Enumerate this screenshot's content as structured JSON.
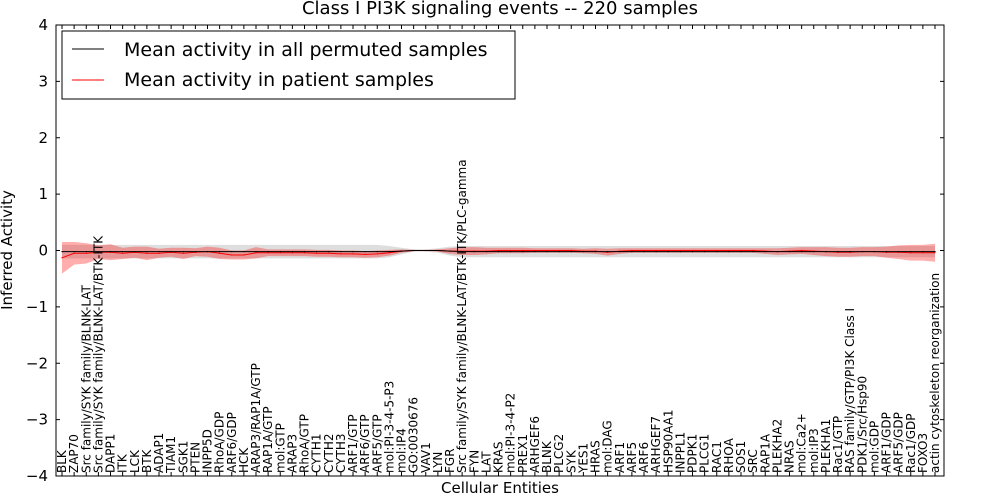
{
  "chart_data": {
    "type": "line",
    "title": "Class I PI3K signaling events -- 220 samples",
    "xlabel": "Cellular Entities",
    "ylabel": "Inferred Activity",
    "ylim": [
      -4,
      4
    ],
    "yticks": [
      "4",
      "3",
      "2",
      "1",
      "0",
      "−1",
      "−2",
      "−3",
      "−4"
    ],
    "legend": {
      "placement": "top-left",
      "entries": [
        {
          "name": "Mean activity in all permuted samples",
          "color": "#000000"
        },
        {
          "name": "Mean activity in patient samples",
          "color": "#ff0000"
        }
      ]
    },
    "categories": [
      "BLK",
      "ZAP70",
      "Src family/SYK family/BLNK-LAT",
      "Src family/SYK family/BLNK-LAT/BTK-ITK",
      "DAPP1",
      "ITK",
      "LCK",
      "BTK",
      "ADAP1",
      "TIAM1",
      "SGK1",
      "PTEN",
      "INPP5D",
      "RhoA/GDP",
      "ARF6/GDP",
      "HCK",
      "ARAP3/RAP1A/GTP",
      "RAP1A/GTP",
      "mol:GTP",
      "ARAP3",
      "RhoA/GTP",
      "CYTH1",
      "CYTH2",
      "CYTH3",
      "ARF1/GTP",
      "ARF6/GTP",
      "ARF5/GTP",
      "mol:PI-3-4-5-P3",
      "mol:IP4",
      "GO:0030676",
      "VAV1",
      "LYN",
      "FGR",
      "Src family/SYK family/BLNK-LAT/BTK-ITK/PLC-gamma",
      "FYN",
      "LAT",
      "KRAS",
      "mol:PI-3-4-P2",
      "PREX1",
      "ARHGEF6",
      "BLNK",
      "PLCG2",
      "SYK",
      "YES1",
      "HRAS",
      "mol:DAG",
      "ARF1",
      "ARF5",
      "ARF6",
      "ARHGEF7",
      "HSP90AA1",
      "INPPL1",
      "PDPK1",
      "PLCG1",
      "RAC1",
      "RHOA",
      "SOS1",
      "SRC",
      "RAP1A",
      "PLEKHA2",
      "NRAS",
      "mol:Ca2+",
      "mol:IP3",
      "PLEKHA1",
      "Rac1/GTP",
      "RAS family/GTP/PI3K Class I",
      "PDK1/Src/Hsp90",
      "mol:GDP",
      "ARF1/GDP",
      "ARF5/GDP",
      "Rac1/GDP",
      "FOXO3",
      "actin cytoskeleton reorganization"
    ],
    "series": [
      {
        "name": "Mean activity in all permuted samples",
        "values": [
          -0.02,
          -0.02,
          -0.02,
          -0.02,
          -0.02,
          -0.02,
          -0.02,
          -0.02,
          -0.02,
          -0.02,
          -0.02,
          -0.02,
          -0.02,
          -0.02,
          -0.02,
          -0.02,
          -0.02,
          -0.02,
          -0.02,
          -0.02,
          -0.02,
          -0.02,
          -0.02,
          -0.02,
          -0.02,
          -0.02,
          -0.02,
          -0.02,
          -0.01,
          0,
          0,
          0,
          -0.01,
          -0.02,
          -0.02,
          -0.02,
          -0.02,
          -0.02,
          -0.02,
          -0.02,
          -0.02,
          -0.02,
          -0.02,
          -0.02,
          -0.02,
          -0.02,
          -0.02,
          -0.02,
          -0.02,
          -0.02,
          -0.02,
          -0.02,
          -0.02,
          -0.02,
          -0.02,
          -0.02,
          -0.02,
          -0.02,
          -0.02,
          -0.02,
          -0.02,
          -0.02,
          -0.02,
          -0.02,
          -0.02,
          -0.02,
          -0.02,
          -0.02,
          -0.02,
          -0.02,
          -0.02,
          -0.02,
          -0.02
        ],
        "band": [
          0.12,
          0.12,
          0.12,
          0.12,
          0.12,
          0.12,
          0.12,
          0.12,
          0.12,
          0.12,
          0.12,
          0.12,
          0.12,
          0.12,
          0.12,
          0.12,
          0.12,
          0.12,
          0.12,
          0.12,
          0.12,
          0.12,
          0.12,
          0.12,
          0.12,
          0.12,
          0.12,
          0.1,
          0.06,
          0.02,
          0.02,
          0.04,
          0.08,
          0.1,
          0.1,
          0.1,
          0.1,
          0.1,
          0.1,
          0.1,
          0.1,
          0.1,
          0.1,
          0.1,
          0.1,
          0.1,
          0.1,
          0.1,
          0.1,
          0.1,
          0.1,
          0.1,
          0.1,
          0.1,
          0.1,
          0.1,
          0.1,
          0.1,
          0.1,
          0.1,
          0.1,
          0.1,
          0.1,
          0.1,
          0.1,
          0.1,
          0.1,
          0.1,
          0.1,
          0.1,
          0.1,
          0.1,
          0.1
        ]
      },
      {
        "name": "Mean activity in patient samples",
        "values": [
          -0.13,
          -0.05,
          -0.05,
          -0.03,
          -0.03,
          -0.05,
          -0.03,
          -0.05,
          -0.05,
          -0.03,
          -0.05,
          -0.03,
          -0.02,
          -0.05,
          -0.08,
          -0.08,
          -0.04,
          -0.04,
          -0.04,
          -0.04,
          -0.04,
          -0.05,
          -0.05,
          -0.06,
          -0.06,
          -0.07,
          -0.06,
          -0.04,
          -0.01,
          0,
          0,
          0,
          -0.01,
          -0.01,
          -0.01,
          -0.01,
          0,
          0,
          0,
          0,
          0,
          0,
          0,
          -0.01,
          -0.01,
          -0.03,
          -0.01,
          0,
          0,
          0,
          0,
          0,
          0,
          0,
          0,
          0,
          0,
          0,
          -0.01,
          -0.02,
          -0.01,
          0,
          -0.01,
          -0.02,
          -0.03,
          -0.03,
          -0.02,
          -0.02,
          -0.03,
          -0.03,
          -0.04,
          -0.04,
          -0.04
        ],
        "band": [
          0.28,
          0.2,
          0.18,
          0.12,
          0.14,
          0.1,
          0.1,
          0.12,
          0.08,
          0.08,
          0.1,
          0.07,
          0.09,
          0.1,
          0.08,
          0.08,
          0.1,
          0.06,
          0.06,
          0.06,
          0.06,
          0.06,
          0.06,
          0.06,
          0.06,
          0.06,
          0.06,
          0.05,
          0.03,
          0.01,
          0.01,
          0.02,
          0.05,
          0.07,
          0.07,
          0.06,
          0.05,
          0.05,
          0.05,
          0.04,
          0.04,
          0.04,
          0.04,
          0.04,
          0.05,
          0.06,
          0.05,
          0.04,
          0.04,
          0.04,
          0.04,
          0.04,
          0.04,
          0.04,
          0.04,
          0.04,
          0.04,
          0.04,
          0.05,
          0.06,
          0.06,
          0.06,
          0.07,
          0.08,
          0.08,
          0.08,
          0.08,
          0.08,
          0.1,
          0.12,
          0.14,
          0.14,
          0.16
        ]
      }
    ]
  }
}
